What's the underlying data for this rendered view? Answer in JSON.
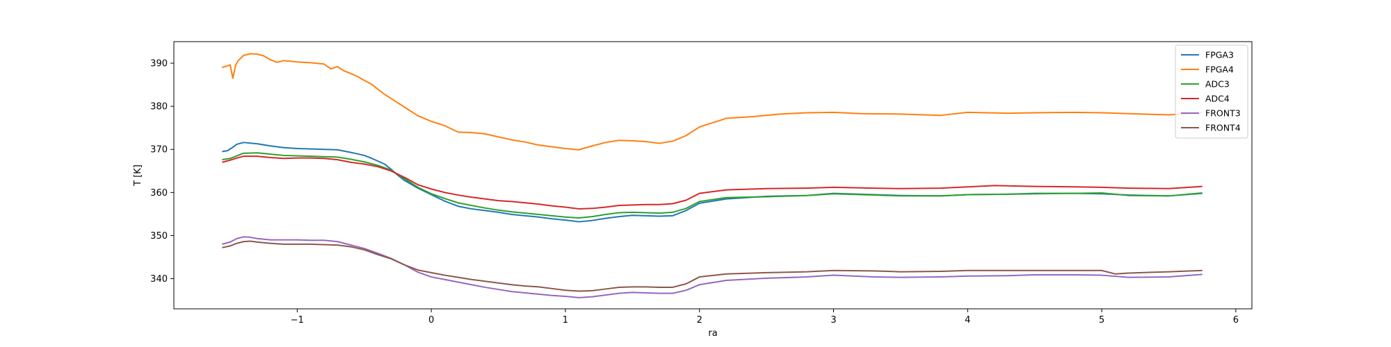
{
  "chart_data": {
    "type": "line",
    "xlabel": "ra",
    "ylabel": "T [K]",
    "xlim": [
      -1.92,
      6.12
    ],
    "ylim": [
      333,
      395
    ],
    "xticks": [
      -1,
      0,
      1,
      2,
      3,
      4,
      5,
      6
    ],
    "xtick_labels": [
      "−1",
      "0",
      "1",
      "2",
      "3",
      "4",
      "5",
      "6"
    ],
    "yticks": [
      340,
      350,
      360,
      370,
      380,
      390
    ],
    "ytick_labels": [
      "340",
      "350",
      "360",
      "370",
      "380",
      "390"
    ],
    "grid": false,
    "legend_position": "upper-right",
    "series": [
      {
        "name": "FPGA3",
        "color": "#1f77b4",
        "x": [
          -1.56,
          -1.52,
          -1.48,
          -1.45,
          -1.4,
          -1.3,
          -1.2,
          -1.1,
          -1.0,
          -0.9,
          -0.8,
          -0.7,
          -0.6,
          -0.5,
          -0.45,
          -0.4,
          -0.35,
          -0.3,
          -0.25,
          -0.2,
          -0.1,
          0.0,
          0.1,
          0.2,
          0.3,
          0.4,
          0.5,
          0.6,
          0.7,
          0.8,
          0.9,
          1.0,
          1.1,
          1.2,
          1.3,
          1.4,
          1.5,
          1.6,
          1.7,
          1.8,
          1.9,
          2.0,
          2.2,
          2.5,
          2.8,
          3.0,
          3.3,
          3.5,
          3.8,
          4.0,
          4.3,
          4.5,
          4.8,
          5.0,
          5.2,
          5.5,
          5.75
        ],
        "y": [
          369.5,
          369.7,
          370.5,
          371.2,
          371.6,
          371.3,
          370.8,
          370.4,
          370.2,
          370.1,
          370.0,
          369.9,
          369.3,
          368.6,
          368.0,
          367.3,
          366.6,
          365.4,
          364.0,
          362.8,
          361.0,
          359.5,
          358.0,
          356.8,
          356.2,
          355.8,
          355.4,
          354.9,
          354.6,
          354.3,
          353.9,
          353.6,
          353.2,
          353.5,
          354.0,
          354.4,
          354.7,
          354.6,
          354.5,
          354.6,
          355.8,
          357.5,
          358.5,
          359.1,
          359.3,
          359.8,
          359.5,
          359.3,
          359.2,
          359.5,
          359.6,
          359.8,
          359.8,
          359.7,
          359.4,
          359.2,
          359.8
        ]
      },
      {
        "name": "FPGA4",
        "color": "#ff7f0e",
        "x": [
          -1.56,
          -1.5,
          -1.48,
          -1.46,
          -1.44,
          -1.4,
          -1.35,
          -1.3,
          -1.25,
          -1.2,
          -1.15,
          -1.1,
          -1.0,
          -0.9,
          -0.8,
          -0.75,
          -0.7,
          -0.65,
          -0.6,
          -0.55,
          -0.5,
          -0.45,
          -0.4,
          -0.35,
          -0.3,
          -0.2,
          -0.1,
          0.0,
          0.1,
          0.2,
          0.3,
          0.4,
          0.5,
          0.6,
          0.7,
          0.8,
          0.9,
          1.0,
          1.1,
          1.2,
          1.3,
          1.4,
          1.5,
          1.6,
          1.7,
          1.8,
          1.9,
          2.0,
          2.2,
          2.4,
          2.6,
          2.8,
          3.0,
          3.2,
          3.5,
          3.8,
          4.0,
          4.3,
          4.5,
          4.8,
          5.0,
          5.2,
          5.5,
          5.75
        ],
        "y": [
          389.0,
          389.6,
          386.5,
          389.5,
          390.6,
          391.8,
          392.2,
          392.1,
          391.7,
          390.8,
          390.2,
          390.6,
          390.3,
          390.1,
          389.8,
          388.7,
          389.2,
          388.2,
          387.6,
          386.9,
          386.0,
          385.2,
          384.0,
          382.8,
          381.8,
          379.8,
          377.8,
          376.5,
          375.5,
          374.0,
          373.9,
          373.6,
          372.9,
          372.2,
          371.7,
          371.0,
          370.6,
          370.2,
          369.9,
          370.8,
          371.6,
          372.1,
          372.0,
          371.8,
          371.4,
          371.9,
          373.2,
          375.2,
          377.2,
          377.6,
          378.2,
          378.5,
          378.6,
          378.3,
          378.2,
          377.9,
          378.6,
          378.4,
          378.5,
          378.6,
          378.5,
          378.3,
          378.0,
          378.5
        ]
      },
      {
        "name": "ADC3",
        "color": "#2ca02c",
        "x": [
          -1.56,
          -1.5,
          -1.45,
          -1.4,
          -1.3,
          -1.2,
          -1.1,
          -1.0,
          -0.9,
          -0.8,
          -0.7,
          -0.6,
          -0.5,
          -0.4,
          -0.3,
          -0.2,
          -0.1,
          0.0,
          0.1,
          0.2,
          0.3,
          0.4,
          0.5,
          0.6,
          0.7,
          0.8,
          0.9,
          1.0,
          1.1,
          1.2,
          1.3,
          1.4,
          1.5,
          1.6,
          1.7,
          1.8,
          1.9,
          2.0,
          2.2,
          2.5,
          2.8,
          3.0,
          3.3,
          3.5,
          3.8,
          4.0,
          4.3,
          4.5,
          4.8,
          5.0,
          5.2,
          5.5,
          5.75
        ],
        "y": [
          367.6,
          367.9,
          368.5,
          369.1,
          369.2,
          368.9,
          368.6,
          368.5,
          368.4,
          368.3,
          368.2,
          367.7,
          367.1,
          366.3,
          365.2,
          363.2,
          361.2,
          359.7,
          358.6,
          357.6,
          357.0,
          356.4,
          355.9,
          355.5,
          355.2,
          354.9,
          354.6,
          354.3,
          354.1,
          354.4,
          354.9,
          355.3,
          355.4,
          355.3,
          355.2,
          355.4,
          356.3,
          357.9,
          358.8,
          359.0,
          359.3,
          359.7,
          359.4,
          359.2,
          359.2,
          359.5,
          359.6,
          359.7,
          359.8,
          359.9,
          359.3,
          359.2,
          359.9
        ]
      },
      {
        "name": "ADC4",
        "color": "#d62728",
        "x": [
          -1.56,
          -1.5,
          -1.45,
          -1.4,
          -1.3,
          -1.2,
          -1.1,
          -1.0,
          -0.9,
          -0.8,
          -0.7,
          -0.6,
          -0.5,
          -0.4,
          -0.3,
          -0.2,
          -0.1,
          0.0,
          0.1,
          0.2,
          0.3,
          0.4,
          0.5,
          0.6,
          0.7,
          0.8,
          0.9,
          1.0,
          1.1,
          1.2,
          1.3,
          1.4,
          1.5,
          1.6,
          1.7,
          1.8,
          1.9,
          2.0,
          2.2,
          2.5,
          2.8,
          3.0,
          3.3,
          3.5,
          3.8,
          4.0,
          4.2,
          4.5,
          4.8,
          5.0,
          5.2,
          5.5,
          5.75
        ],
        "y": [
          367.0,
          367.5,
          368.0,
          368.4,
          368.4,
          368.1,
          367.9,
          368.0,
          368.0,
          367.9,
          367.6,
          367.0,
          366.6,
          366.0,
          365.0,
          363.5,
          361.8,
          360.8,
          360.0,
          359.4,
          358.9,
          358.5,
          358.1,
          357.9,
          357.6,
          357.3,
          356.9,
          356.6,
          356.2,
          356.3,
          356.6,
          357.0,
          357.1,
          357.2,
          357.2,
          357.4,
          358.2,
          359.8,
          360.6,
          360.9,
          361.0,
          361.2,
          361.0,
          360.9,
          361.0,
          361.3,
          361.6,
          361.4,
          361.3,
          361.2,
          361.0,
          360.9,
          361.4
        ]
      },
      {
        "name": "FRONT3",
        "color": "#9467bd",
        "x": [
          -1.56,
          -1.5,
          -1.45,
          -1.4,
          -1.35,
          -1.3,
          -1.2,
          -1.1,
          -1.0,
          -0.9,
          -0.8,
          -0.7,
          -0.6,
          -0.5,
          -0.4,
          -0.3,
          -0.2,
          -0.1,
          0.0,
          0.1,
          0.2,
          0.3,
          0.4,
          0.5,
          0.6,
          0.7,
          0.8,
          0.9,
          1.0,
          1.1,
          1.2,
          1.3,
          1.4,
          1.5,
          1.6,
          1.7,
          1.8,
          1.9,
          2.0,
          2.2,
          2.5,
          2.8,
          3.0,
          3.3,
          3.5,
          3.8,
          4.0,
          4.3,
          4.5,
          4.8,
          5.0,
          5.2,
          5.5,
          5.75
        ],
        "y": [
          348.0,
          348.5,
          349.3,
          349.7,
          349.6,
          349.3,
          349.0,
          349.0,
          349.0,
          348.9,
          348.9,
          348.6,
          347.8,
          347.0,
          345.9,
          344.7,
          343.2,
          341.5,
          340.4,
          339.8,
          339.2,
          338.6,
          338.0,
          337.5,
          337.0,
          336.7,
          336.4,
          336.1,
          335.9,
          335.6,
          335.8,
          336.2,
          336.6,
          336.8,
          336.7,
          336.6,
          336.6,
          337.3,
          338.6,
          339.6,
          340.1,
          340.4,
          340.8,
          340.4,
          340.3,
          340.4,
          340.6,
          340.7,
          340.9,
          340.9,
          340.8,
          340.3,
          340.4,
          341.0
        ]
      },
      {
        "name": "FRONT4",
        "color": "#8c564b",
        "x": [
          -1.56,
          -1.5,
          -1.45,
          -1.4,
          -1.35,
          -1.3,
          -1.2,
          -1.1,
          -1.0,
          -0.9,
          -0.8,
          -0.7,
          -0.6,
          -0.5,
          -0.4,
          -0.3,
          -0.2,
          -0.1,
          0.0,
          0.1,
          0.2,
          0.3,
          0.4,
          0.5,
          0.6,
          0.7,
          0.8,
          0.9,
          1.0,
          1.1,
          1.2,
          1.3,
          1.4,
          1.5,
          1.6,
          1.7,
          1.8,
          1.9,
          2.0,
          2.2,
          2.5,
          2.8,
          3.0,
          3.3,
          3.5,
          3.8,
          4.0,
          4.3,
          4.5,
          4.8,
          5.0,
          5.1,
          5.2,
          5.5,
          5.75
        ],
        "y": [
          347.2,
          347.6,
          348.2,
          348.6,
          348.7,
          348.5,
          348.2,
          348.0,
          348.0,
          348.0,
          347.9,
          347.8,
          347.4,
          346.7,
          345.6,
          344.6,
          343.2,
          342.0,
          341.4,
          340.8,
          340.3,
          339.8,
          339.4,
          339.0,
          338.6,
          338.3,
          338.1,
          337.7,
          337.3,
          337.1,
          337.2,
          337.6,
          338.0,
          338.1,
          338.1,
          338.0,
          338.0,
          338.8,
          340.4,
          341.1,
          341.4,
          341.6,
          341.9,
          341.8,
          341.6,
          341.7,
          341.9,
          341.9,
          341.9,
          341.9,
          341.9,
          341.1,
          341.3,
          341.6,
          341.9
        ]
      }
    ]
  }
}
